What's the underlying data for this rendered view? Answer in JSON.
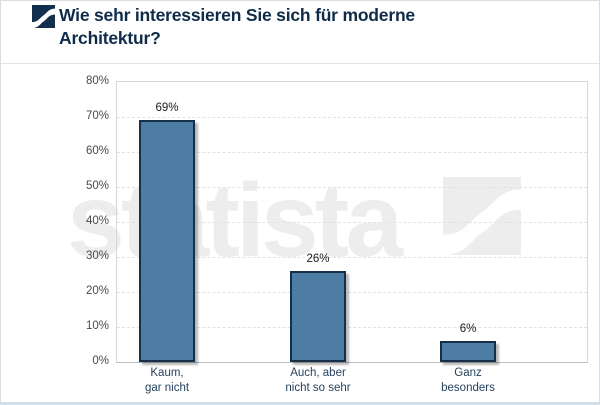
{
  "header": {
    "title": "Wie sehr interessieren Sie sich für moderne Architektur?",
    "logo": "statista-logo"
  },
  "chart_data": {
    "type": "bar",
    "title": "Wie sehr interessieren Sie sich für moderne Architektur?",
    "categories": [
      "Kaum, gar nicht",
      "Auch, aber nicht so sehr",
      "Ganz besonders"
    ],
    "category_lines": [
      [
        "Kaum,",
        "gar nicht"
      ],
      [
        "Auch, aber",
        "nicht so sehr"
      ],
      [
        "Ganz",
        "besonders"
      ]
    ],
    "values": [
      69,
      26,
      6
    ],
    "value_labels": [
      "69%",
      "26%",
      "6%"
    ],
    "unit": "%",
    "ylim": [
      0,
      80
    ],
    "ytick_step": 10,
    "ytick_labels": [
      "0%",
      "10%",
      "20%",
      "30%",
      "40%",
      "50%",
      "60%",
      "70%",
      "80%"
    ],
    "grid": "horizontal-dashed",
    "legend": "none",
    "watermark": "statista",
    "colors": {
      "bar_fill": "#4d7da4",
      "bar_border": "#16304a",
      "title_text": "#0f2b49",
      "category_text": "#26425e",
      "axis_text": "#4a4a4a",
      "value_text": "#1a1a1a",
      "watermark": "#ededed",
      "logo_bg": "#132f4e"
    }
  }
}
